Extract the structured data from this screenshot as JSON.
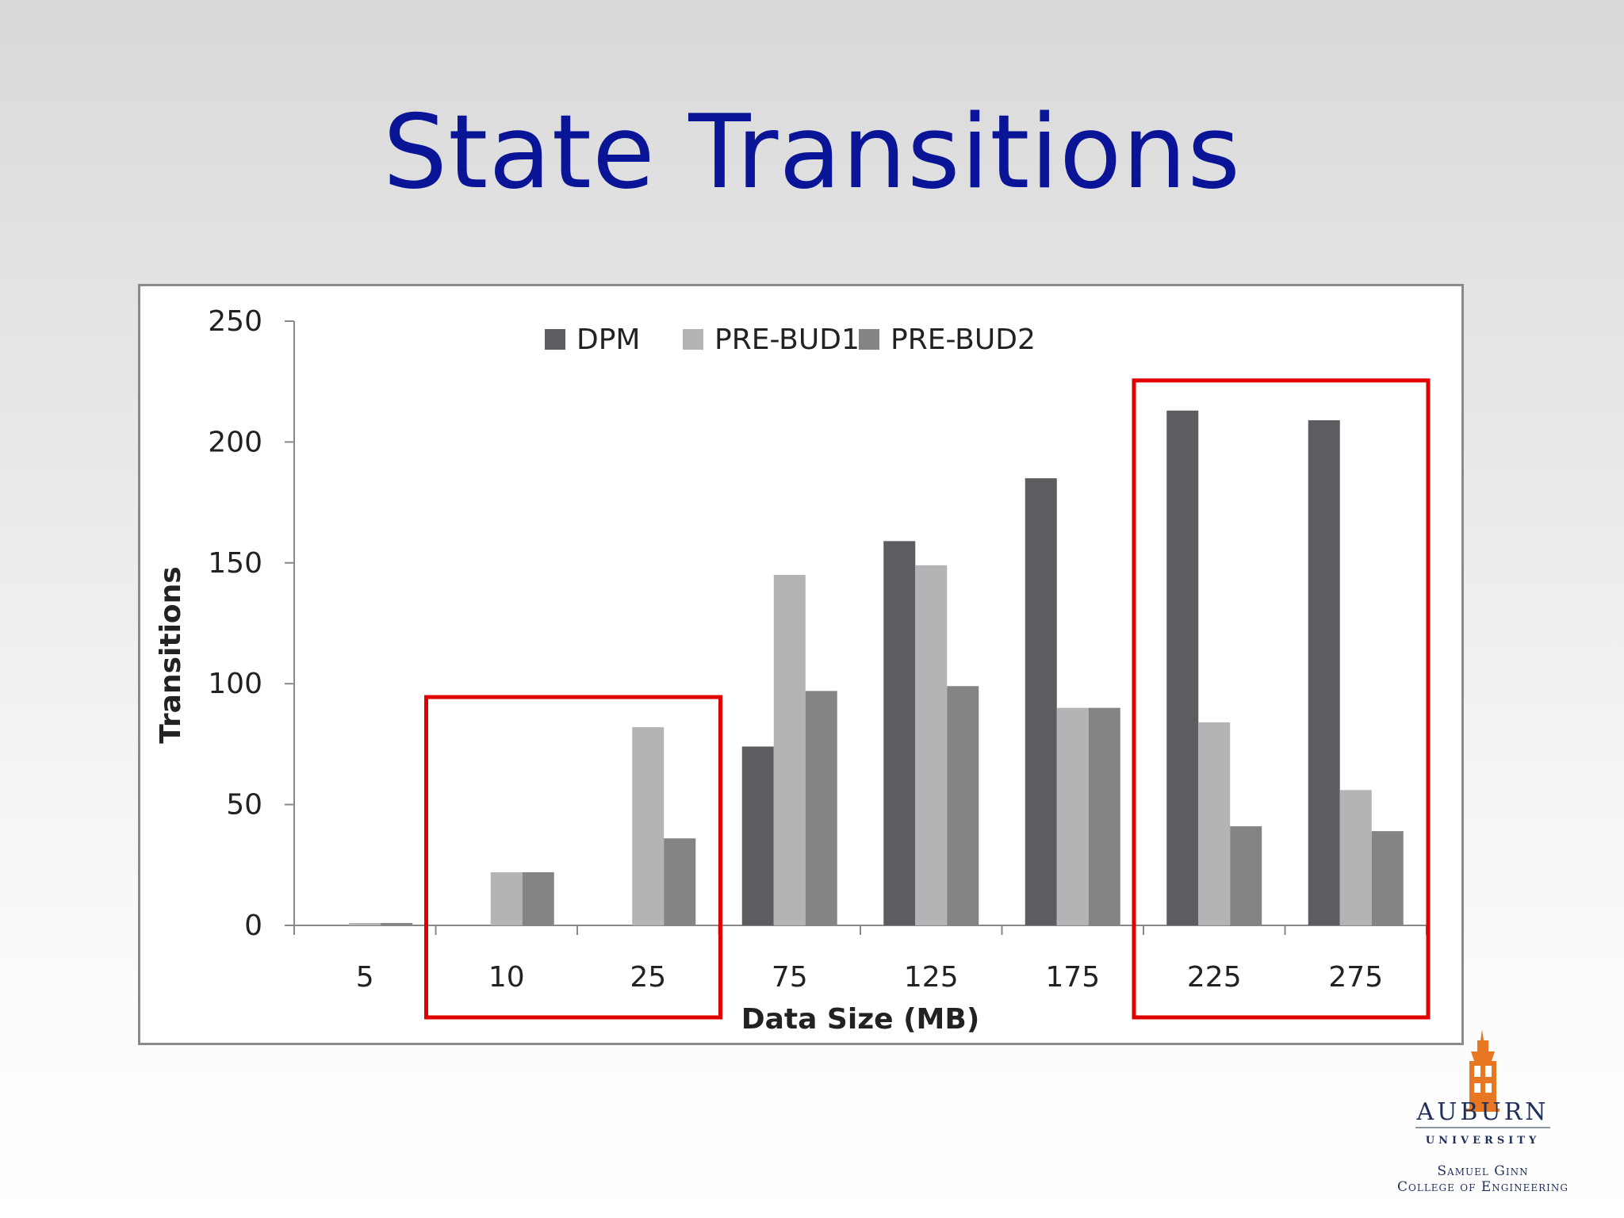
{
  "slide": {
    "title": "State Transitions"
  },
  "colors": {
    "title": "#0a1496",
    "highlight": "#e00000",
    "logo_orange": "#e87722",
    "logo_navy": "#1f2f5a"
  },
  "logo": {
    "name": "AUBURN",
    "subtitle": "UNIVERSITY",
    "college_line1": "Samuel Ginn",
    "college_line2": "College of Engineering",
    "icon": "samford-tower-icon"
  },
  "chart_data": {
    "type": "bar",
    "categories": [
      "5",
      "10",
      "25",
      "75",
      "125",
      "175",
      "225",
      "275"
    ],
    "series": [
      {
        "name": "DPM",
        "color": "#5e5c60",
        "values": [
          0,
          0,
          0,
          74,
          159,
          185,
          213,
          209
        ]
      },
      {
        "name": "PRE-BUD1",
        "color": "#b4b3b6",
        "values": [
          1,
          22,
          82,
          145,
          149,
          90,
          84,
          56
        ]
      },
      {
        "name": "PRE-BUD2",
        "color": "#858386",
        "values": [
          1,
          22,
          36,
          97,
          99,
          90,
          41,
          39
        ]
      }
    ],
    "title": "",
    "xlabel": "Data Size (MB)",
    "ylabel": "Transitions",
    "ylim": [
      0,
      250
    ],
    "yticks": [
      0,
      50,
      100,
      150,
      200,
      250
    ],
    "grid": false,
    "legend": "top-center",
    "highlights": [
      {
        "categories": [
          "10",
          "25"
        ]
      },
      {
        "categories": [
          "225",
          "275"
        ]
      }
    ]
  }
}
